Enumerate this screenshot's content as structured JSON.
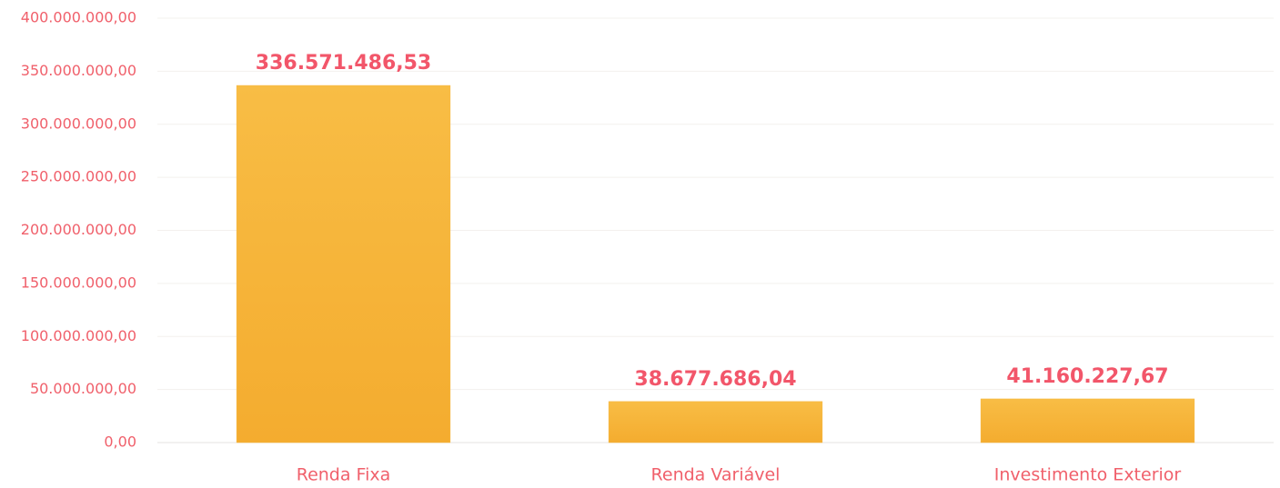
{
  "chart_data": {
    "type": "bar",
    "categories": [
      "Renda Fixa",
      "Renda Variável",
      "Investimento Exterior"
    ],
    "values": [
      336571486.53,
      38677686.04,
      41160227.67
    ],
    "value_labels": [
      "336.571.486,53",
      "38.677.686,04",
      "41.160.227,67"
    ],
    "color": "#f6b53a",
    "ylim": [
      0,
      400000000
    ],
    "yticks": [
      {
        "value": 0,
        "label": "0,00"
      },
      {
        "value": 50000000,
        "label": "50.000.000,00"
      },
      {
        "value": 100000000,
        "label": "100.000.000,00"
      },
      {
        "value": 150000000,
        "label": "150.000.000,00"
      },
      {
        "value": 200000000,
        "label": "200.000.000,00"
      },
      {
        "value": 250000000,
        "label": "250.000.000,00"
      },
      {
        "value": 300000000,
        "label": "300.000.000,00"
      },
      {
        "value": 350000000,
        "label": "350.000.000,00"
      },
      {
        "value": 400000000,
        "label": "400.000.000,00"
      }
    ],
    "grid": true
  }
}
